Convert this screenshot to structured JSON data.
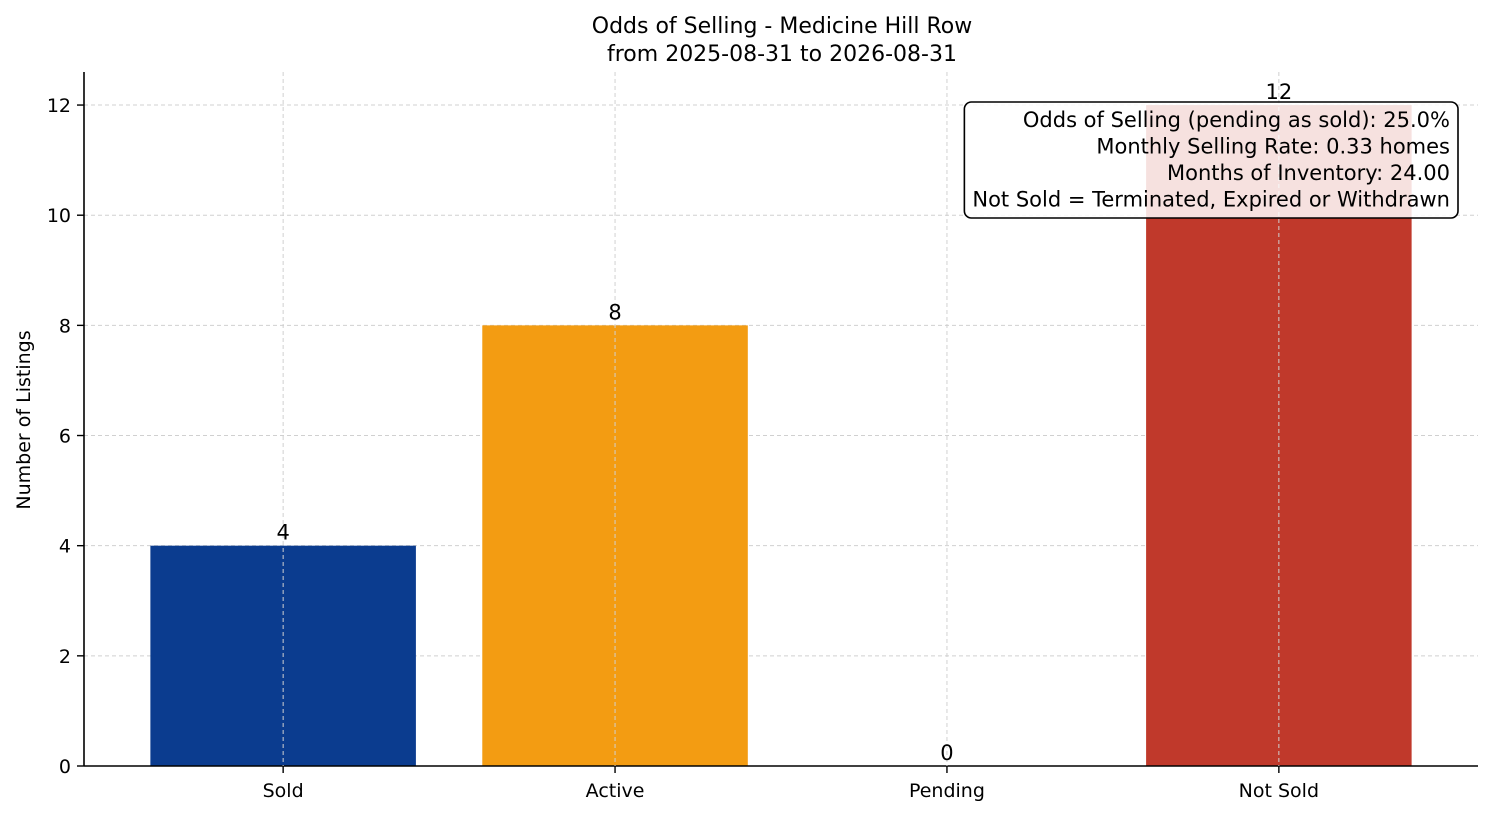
{
  "chart_data": {
    "type": "bar",
    "title": "Odds of Selling - Medicine Hill Row",
    "subtitle": "from 2025-08-31 to 2026-08-31",
    "xlabel": "",
    "ylabel": "Number of Listings",
    "categories": [
      "Sold",
      "Active",
      "Pending",
      "Not Sold"
    ],
    "values": [
      4,
      8,
      0,
      12
    ],
    "colors": [
      "#0b3c8f",
      "#f39c12",
      "#1f77b4",
      "#c0392b"
    ],
    "ylim": [
      0,
      12.6
    ],
    "yticks": [
      0,
      2,
      4,
      6,
      8,
      10,
      12
    ],
    "grid": true,
    "annotation": {
      "placement": "top-right",
      "lines": [
        "Odds of Selling (pending as sold): 25.0%",
        "Monthly Selling Rate: 0.33 homes",
        "Months of Inventory: 24.00",
        "Not Sold = Terminated, Expired or Withdrawn"
      ]
    }
  }
}
